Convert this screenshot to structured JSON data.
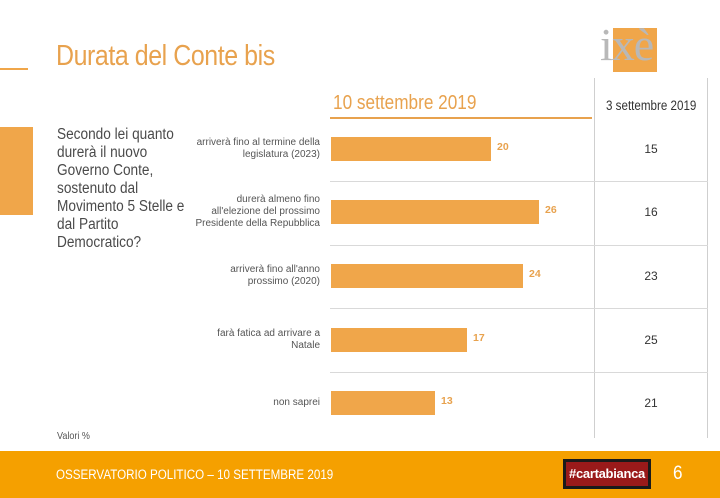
{
  "page": {
    "title": "Durata del Conte bis",
    "question": "Secondo lei quanto durerà il nuovo Governo Conte, sostenuto dal Movimento 5 Stelle e dal Partito Democratico?",
    "note": "Valori %",
    "logo_text": "ixè"
  },
  "footer": {
    "text": "OSSERVATORIO POLITICO – 10 SETTEMBRE 2019",
    "brand": "#cartabianca",
    "page_number": "6"
  },
  "colors": {
    "accent": "#f0a64a",
    "footer": "#f5a000",
    "brand_bg": "#9a1a1a"
  },
  "chart_data": {
    "type": "bar",
    "orientation": "horizontal",
    "series_header": "10 settembre 2019",
    "comparison_header": "3 settembre 2019",
    "xlim": [
      0,
      30
    ],
    "categories": [
      "arriverà fino al termine della legislatura (2023)",
      "durerà almeno fino all'elezione del prossimo Presidente della Repubblica",
      "arriverà fino all'anno prossimo (2020)",
      "farà fatica ad arrivare a Natale",
      "non saprei"
    ],
    "series": [
      {
        "values": [
          20,
          26,
          24,
          17,
          13
        ]
      }
    ],
    "comparison_values": [
      15,
      16,
      23,
      25,
      21
    ]
  }
}
